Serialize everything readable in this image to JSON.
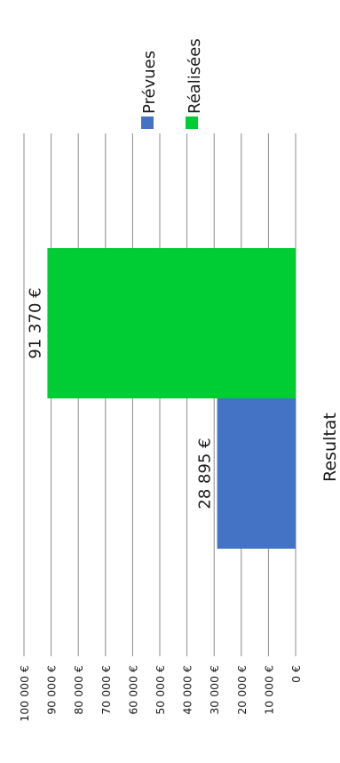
{
  "chart_data": {
    "type": "bar",
    "orientation": "rotated",
    "categories": [
      "Resultat"
    ],
    "series": [
      {
        "name": "Prévues",
        "values": [
          28895
        ],
        "value_label": "28 895 €",
        "color": "#4472C4"
      },
      {
        "name": "Réalisées",
        "values": [
          91370
        ],
        "value_label": "91 370 €",
        "color": "#00CC33"
      }
    ],
    "ylim": [
      0,
      100000
    ],
    "yticks": [
      {
        "value": 0,
        "label": "0 €"
      },
      {
        "value": 10000,
        "label": "10 000 €"
      },
      {
        "value": 20000,
        "label": "20 000 €"
      },
      {
        "value": 30000,
        "label": "30 000 €"
      },
      {
        "value": 40000,
        "label": "40 000 €"
      },
      {
        "value": 50000,
        "label": "50 000 €"
      },
      {
        "value": 60000,
        "label": "60 000 €"
      },
      {
        "value": 70000,
        "label": "70 000 €"
      },
      {
        "value": 80000,
        "label": "80 000 €"
      },
      {
        "value": 90000,
        "label": "90 000 €"
      },
      {
        "value": 100000,
        "label": "100 000 €"
      }
    ],
    "grid": true,
    "legend_position": "top"
  }
}
